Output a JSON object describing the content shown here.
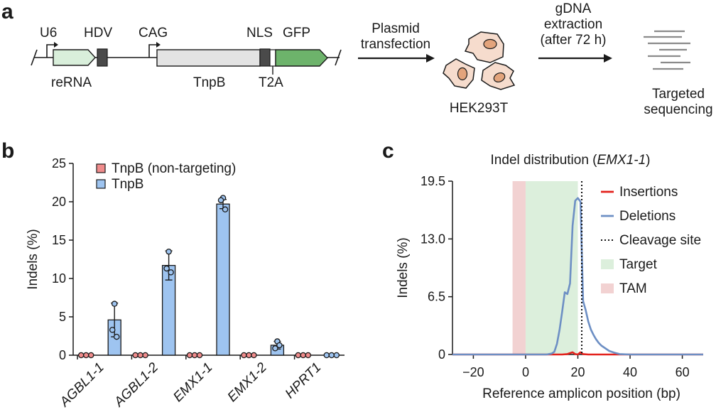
{
  "panel_a": {
    "letter": "a",
    "construct": {
      "u6": "U6",
      "hdv": "HDV",
      "cag": "CAG",
      "nls": "NLS",
      "gfp": "GFP",
      "rerna": "reRNA",
      "tnpb": "TnpB",
      "t2a": "T2A"
    },
    "arrow1_lines": [
      "Plasmid",
      "transfection"
    ],
    "cells_label": "HEK293T",
    "arrow2_lines": [
      "gDNA",
      "extraction",
      "(after 72 h)"
    ],
    "seq_lines": [
      "Targeted",
      "sequencing"
    ],
    "colors": {
      "rerna": "#d9efdb",
      "tnpb": "#e3e3e3",
      "gfp": "#6db36b",
      "dark": "#4a4a4a",
      "cell": "#f6dccd",
      "nucleus": "#e3a47c",
      "reads": "#8a8a8a"
    }
  },
  "panel_b": {
    "letter": "b",
    "colors": {
      "non_targeting": "#f08c8c",
      "targeting": "#9ec4f0"
    },
    "chart_data": {
      "type": "bar",
      "title": "",
      "xlabel": "",
      "ylabel": "Indels (%)",
      "ylim": [
        0,
        25
      ],
      "yticks": [
        0,
        5,
        10,
        15,
        20,
        25
      ],
      "categories": [
        "AGBL1-1",
        "AGBL1-2",
        "EMX1-1",
        "EMX1-2",
        "HPRT1"
      ],
      "series": [
        {
          "name": "TnpB (non-targeting)",
          "values": [
            0,
            0,
            0,
            0,
            0
          ],
          "points": [
            [
              0,
              0,
              0
            ],
            [
              0,
              0,
              0
            ],
            [
              0,
              0,
              0
            ],
            [
              0,
              0,
              0
            ],
            [
              0,
              0,
              0
            ]
          ]
        },
        {
          "name": "TnpB",
          "values": [
            4.6,
            11.7,
            19.7,
            1.3,
            0.05
          ],
          "error": [
            2.2,
            1.9,
            0.6,
            0.5,
            0
          ],
          "points": [
            [
              6.7,
              3.3,
              2.4
            ],
            [
              13.5,
              11.3,
              10.8
            ],
            [
              20.5,
              20.2,
              19.0
            ],
            [
              1.8,
              0.9,
              1.3
            ],
            [
              0,
              0,
              0
            ]
          ]
        }
      ]
    }
  },
  "panel_c": {
    "letter": "c",
    "title_prefix": "Indel distribution (",
    "title_italic": "EMX1-1",
    "title_suffix": ")",
    "colors": {
      "insertions": "#e3211c",
      "deletions": "#6d8fc4",
      "cleavage": "#111111",
      "target": "#dcefdc",
      "tam": "#f2d2d2"
    },
    "chart_data": {
      "type": "line",
      "title": "Indel distribution (EMX1-1)",
      "xlabel": "Reference amplicon position (bp)",
      "ylabel": "Indels (%)",
      "xlim": [
        -28,
        68
      ],
      "ylim": [
        0,
        19.5
      ],
      "xticks": [
        -20,
        0,
        20,
        40,
        60
      ],
      "yticks": [
        0,
        6.5,
        13.0,
        19.5
      ],
      "ytick_labels": [
        "0",
        "6.5",
        "13.0",
        "19.5"
      ],
      "series": [
        {
          "name": "Insertions",
          "x": [
            -28,
            10,
            12,
            14,
            16,
            18,
            19,
            20,
            21,
            22,
            24,
            26,
            30,
            40,
            68
          ],
          "y": [
            0,
            0,
            0,
            0,
            0.05,
            0.25,
            0.05,
            0,
            0.25,
            0.05,
            0,
            0,
            0,
            0,
            0
          ]
        },
        {
          "name": "Deletions",
          "x": [
            -28,
            0,
            8,
            10,
            11,
            12,
            13,
            14,
            15,
            16,
            17,
            18,
            19,
            20,
            21,
            22,
            23,
            24,
            25,
            26,
            27,
            28,
            29,
            30,
            32,
            34,
            36,
            40,
            68
          ],
          "y": [
            0,
            0,
            0,
            0.1,
            0.3,
            1.2,
            2.8,
            4.8,
            7.0,
            6.8,
            8.0,
            14.5,
            17.3,
            17.6,
            17.2,
            6.0,
            5.0,
            3.7,
            2.8,
            2.2,
            1.7,
            1.3,
            1.0,
            0.8,
            0.4,
            0.2,
            0.05,
            0,
            0
          ]
        }
      ],
      "cleavage_site_x": 21.5,
      "target_region": [
        0,
        20
      ],
      "tam_region": [
        -5,
        0
      ],
      "legend": [
        "Insertions",
        "Deletions",
        "Cleavage site",
        "Target",
        "TAM"
      ]
    }
  }
}
